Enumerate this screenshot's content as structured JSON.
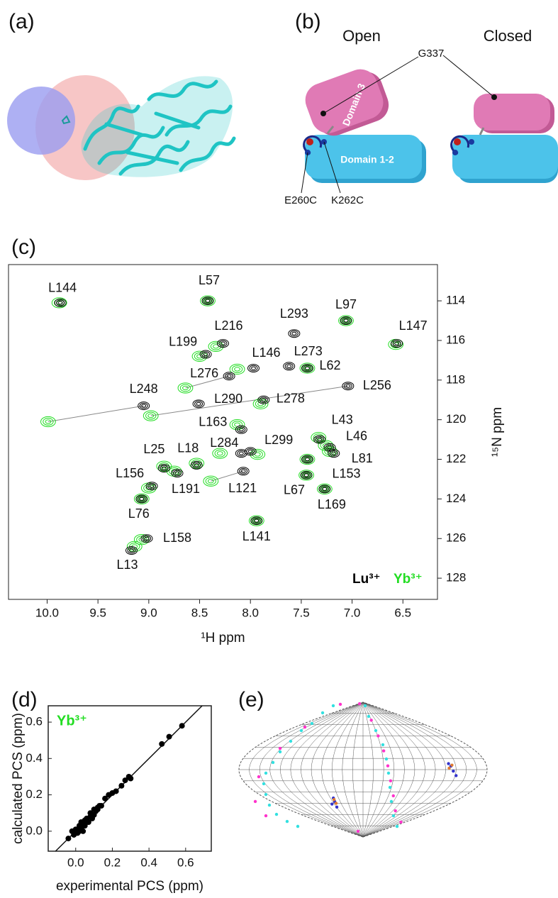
{
  "panel_labels": [
    "(a)",
    "(b)",
    "(c)",
    "(d)",
    "(e)"
  ],
  "diagram": {
    "open": "Open",
    "closed": "Closed",
    "g337": "G337",
    "domain3": "Domain 3",
    "domain12": "Domain 1-2",
    "e260c": "E260C",
    "k262c": "K262C"
  },
  "chart_data": [
    {
      "type": "contour",
      "x_label": "¹H ppm",
      "y_label": "¹⁵N ppm",
      "xlim": [
        10.38,
        6.16
      ],
      "ylim": [
        129.07,
        112.17
      ],
      "xticks": [
        {
          "value": 10,
          "label": "10.0"
        },
        9.5,
        {
          "value": 9,
          "label": "9.0"
        },
        8.5,
        {
          "value": 8,
          "label": "8.0"
        },
        7.5,
        {
          "value": 7,
          "label": "7.0"
        },
        6.5
      ],
      "yticks": [
        114,
        116,
        118,
        120,
        122,
        124,
        126,
        128
      ],
      "annotations": [
        "L144",
        "L57",
        "L293",
        "L97",
        "L147",
        "L216",
        "L199",
        "L146",
        "L273",
        "L62",
        "L276",
        "L256",
        "L248",
        "L290",
        "L278",
        "L163",
        "L43",
        "L46",
        "L81",
        "L299",
        "L284",
        "L18",
        "L25",
        "L156",
        "L191",
        "L121",
        "L67",
        "L153",
        "L169",
        "L76",
        "L141",
        "L158",
        "L13"
      ],
      "series": [
        {
          "name": "Lu³⁺",
          "color": "#000000",
          "x": [
            9.87,
            8.42,
            7.57,
            7.06,
            6.56,
            8.27,
            8.44,
            7.97,
            7.62,
            7.44,
            8.21,
            7.04,
            9.05,
            8.51,
            7.87,
            8.09,
            7.32,
            7.22,
            7.18,
            8.0,
            8.09,
            8.53,
            8.85,
            8.97,
            8.72,
            8.07,
            7.45,
            7.44,
            7.27,
            9.07,
            7.94,
            9.02,
            9.17
          ],
          "y": [
            114.1,
            114.0,
            115.65,
            115.0,
            116.15,
            116.15,
            116.7,
            117.4,
            117.3,
            117.4,
            117.8,
            118.3,
            119.3,
            119.2,
            119.0,
            120.5,
            121.0,
            121.4,
            121.7,
            121.6,
            121.7,
            122.3,
            122.45,
            123.35,
            122.7,
            122.6,
            122.8,
            122.0,
            123.5,
            124.0,
            125.1,
            126.0,
            126.6
          ]
        },
        {
          "name": "Yb³⁺",
          "color": "#22dd22",
          "x": [
            9.88,
            8.42,
            null,
            7.06,
            6.57,
            8.34,
            8.5,
            8.13,
            null,
            7.44,
            8.64,
            8.98,
            9.99,
            null,
            7.9,
            8.13,
            7.33,
            7.26,
            7.22,
            7.93,
            8.3,
            8.53,
            8.85,
            9.0,
            8.75,
            8.39,
            7.45,
            7.44,
            7.27,
            9.07,
            7.94,
            9.07,
            9.14
          ],
          "y": [
            114.1,
            114.0,
            null,
            115.0,
            116.2,
            116.3,
            116.8,
            117.45,
            null,
            117.4,
            118.4,
            119.8,
            120.1,
            null,
            119.2,
            120.25,
            120.9,
            121.3,
            121.6,
            121.75,
            121.7,
            122.2,
            122.35,
            123.45,
            122.6,
            123.1,
            122.8,
            122.0,
            123.5,
            124.0,
            125.1,
            126.05,
            126.4
          ]
        }
      ]
    },
    {
      "type": "scatter",
      "x_label": "experimental PCS (ppm)",
      "y_label": "calculated PCS (ppm)",
      "inset_label": "Yb³⁺",
      "inset_color": "#22dd22",
      "color": "#000000",
      "diagonal": true,
      "xlim": [
        -0.15,
        0.74
      ],
      "ylim": [
        -0.11,
        0.69
      ],
      "xticks": [
        {
          "value": 0,
          "label": "0.0"
        },
        0.2,
        0.4,
        0.6
      ],
      "yticks": [
        {
          "value": 0,
          "label": "0.0"
        },
        0.2,
        0.4,
        0.6
      ],
      "x": [
        -0.04,
        -0.02,
        0.0,
        0.01,
        0.02,
        0.02,
        0.03,
        0.04,
        0.04,
        0.05,
        0.05,
        0.06,
        0.07,
        0.08,
        0.08,
        0.09,
        0.1,
        0.1,
        0.11,
        0.12,
        0.13,
        0.14,
        0.16,
        0.18,
        0.2,
        0.22,
        0.25,
        0.27,
        0.29,
        0.3,
        0.47,
        0.51,
        0.58,
        0.12,
        0.03,
        0.06,
        -0.01,
        0.015
      ],
      "y": [
        -0.04,
        0.0,
        0.01,
        -0.01,
        0.0,
        0.03,
        0.05,
        0.04,
        0.0,
        0.06,
        0.03,
        0.07,
        0.05,
        0.08,
        0.1,
        0.07,
        0.12,
        0.09,
        0.11,
        0.13,
        0.14,
        0.14,
        0.18,
        0.2,
        0.21,
        0.22,
        0.25,
        0.28,
        0.3,
        0.29,
        0.48,
        0.52,
        0.58,
        0.12,
        0.02,
        0.05,
        -0.02,
        0.005
      ]
    },
    {
      "type": "map",
      "projection": "sinusoidal",
      "graticule_step": 15,
      "xlim": [
        -180,
        180
      ],
      "ylim": [
        -90,
        90
      ],
      "series": [
        {
          "color": "#33e0e0",
          "x": [
            -43.2,
            -58.6,
            -74.1,
            -89.5,
            -104.9,
            -120.3,
            -130.6,
            -140.9,
            -144.0,
            -140.9,
            -135.8,
            -125.5,
            -110.1,
            -94.6,
            3.1,
            8.2,
            18.5,
            28.8,
            33.9,
            37.0,
            39.1,
            41.1,
            44.2,
            49.4
          ],
          "y": [
            85.3,
            75.8,
            61.6,
            52.1,
            37.9,
            23.7,
            9.5,
            -4.7,
            -18.9,
            -33.2,
            -47.4,
            -59.7,
            -69.2,
            -75.8,
            85.3,
            71.1,
            52.1,
            33.2,
            14.2,
            -4.7,
            -23.7,
            -42.6,
            -61.6,
            -75.8
          ]
        },
        {
          "color": "#ff33cc",
          "x": [
            -32.9,
            -84.3,
            -120.3,
            -151.2,
            -156.3,
            -140.9,
            -7.2,
            -5,
            12,
            22,
            30,
            36,
            40,
            44,
            47,
            55
          ],
          "y": [
            87.2,
            56.8,
            28.4,
            -9.5,
            -42.6,
            -61.6,
            -82.4,
            88,
            66,
            45,
            25,
            5,
            -15,
            -35,
            -55,
            -70
          ]
        },
        {
          "color": "#3333cc",
          "x": [
            -41.1,
            -43,
            -38,
            -45,
            127.5,
            131,
            124,
            135
          ],
          "y": [
            -42.6,
            -38,
            -50,
            -46,
            4.7,
            -2,
            8,
            -8
          ]
        },
        {
          "color": "#e07a30",
          "x": [
            -39,
            -42,
            125,
            129
          ],
          "y": [
            -45,
            -40,
            2,
            6
          ]
        }
      ]
    }
  ]
}
